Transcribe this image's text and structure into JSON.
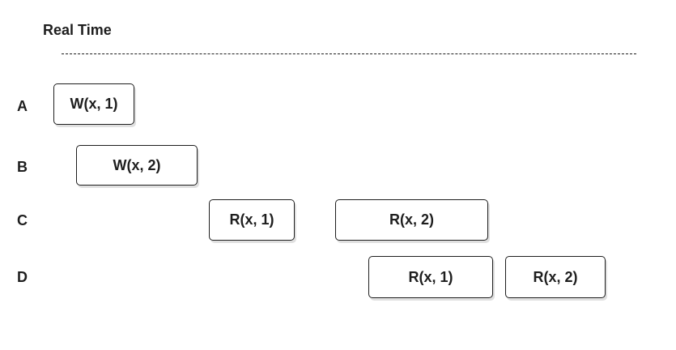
{
  "axis": {
    "label": "Real Time"
  },
  "rows": [
    {
      "label": "A",
      "ops": [
        "W(x, 1)"
      ]
    },
    {
      "label": "B",
      "ops": [
        "W(x, 2)"
      ]
    },
    {
      "label": "C",
      "ops": [
        "R(x, 1)",
        "R(x, 2)"
      ]
    },
    {
      "label": "D",
      "ops": [
        "R(x, 1)",
        "R(x, 2)"
      ]
    }
  ]
}
